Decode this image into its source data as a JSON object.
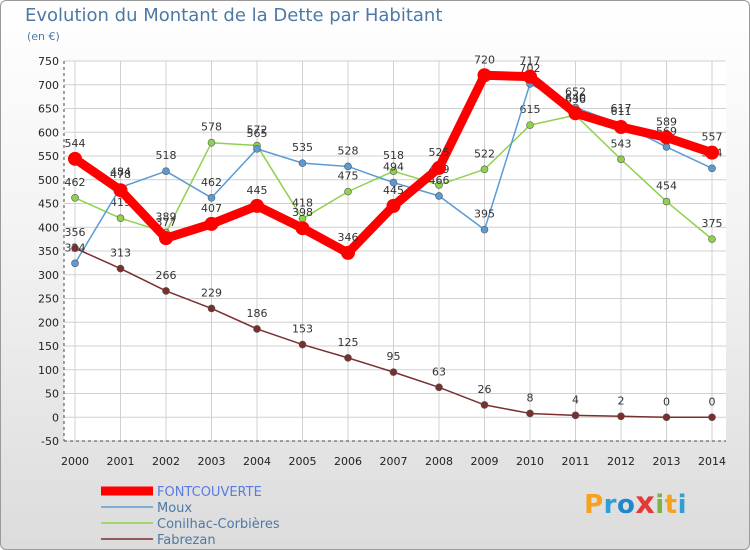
{
  "chart_data": {
    "type": "line",
    "title": "Evolution du Montant de la Dette par Habitant",
    "subtitle": "(en €)",
    "x": [
      "2000",
      "2001",
      "2002",
      "2003",
      "2004",
      "2005",
      "2006",
      "2007",
      "2008",
      "2009",
      "2010",
      "2011",
      "2012",
      "2013",
      "2014"
    ],
    "yticks": [
      -50,
      0,
      50,
      100,
      150,
      200,
      250,
      300,
      350,
      400,
      450,
      500,
      550,
      600,
      650,
      700,
      750
    ],
    "ylim": [
      -50,
      750
    ],
    "grid": true,
    "legend_position": "bottom-left",
    "series": [
      {
        "name": "FONTCOUVERTE",
        "color": "#ff0000",
        "values": [
          544,
          478,
          377,
          407,
          445,
          398,
          346,
          445,
          525,
          720,
          717,
          640,
          611,
          589,
          557
        ]
      },
      {
        "name": "Moux",
        "color": "#5b9bd5",
        "values": [
          324,
          484,
          518,
          462,
          565,
          535,
          528,
          494,
          466,
          395,
          702,
          652,
          617,
          569,
          524
        ]
      },
      {
        "name": "Conilhac-Corbières",
        "color": "#8fd14f",
        "values": [
          462,
          419,
          389,
          578,
          572,
          418,
          475,
          518,
          489,
          522,
          615,
          636,
          543,
          454,
          375
        ]
      },
      {
        "name": "Fabrezan",
        "color": "#7a2f2f",
        "values": [
          356,
          313,
          266,
          229,
          186,
          153,
          125,
          95,
          63,
          26,
          8,
          4,
          2,
          0,
          0
        ]
      }
    ]
  },
  "brand": {
    "letters": [
      "P",
      "r",
      "o",
      "x",
      "i",
      "t",
      "i"
    ],
    "colors": [
      "#f7a21b",
      "#2f9fd8",
      "#1e88c8",
      "#e53935",
      "#7cb342",
      "#f7a21b",
      "#2f9fd8"
    ]
  }
}
